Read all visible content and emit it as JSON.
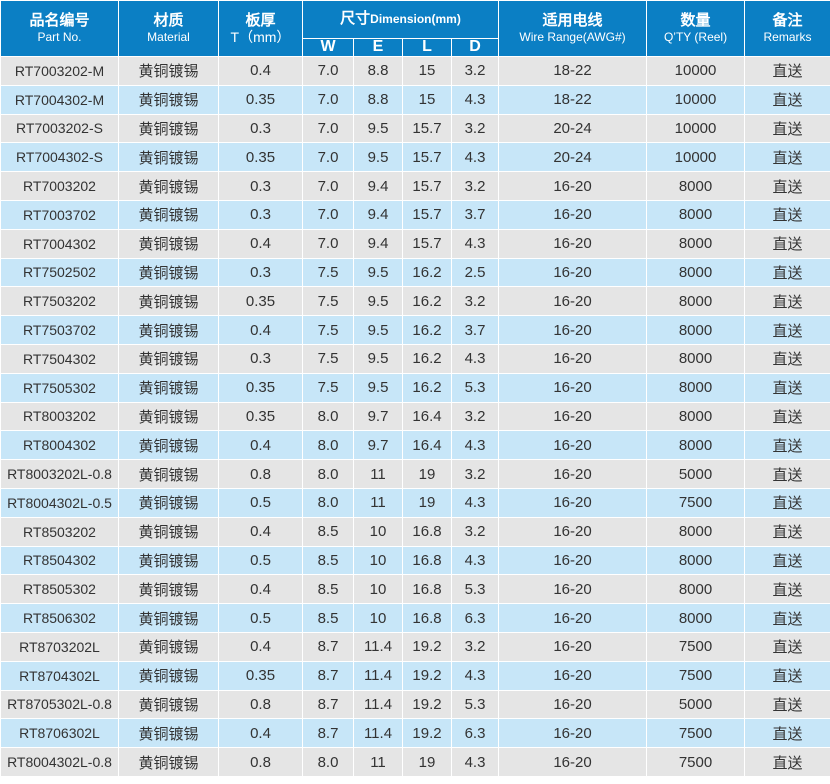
{
  "header": {
    "part_zh": "品名编号",
    "part_en": "Part No.",
    "material_zh": "材质",
    "material_en": "Material",
    "thickness_zh": "板厚",
    "thickness_en": "T（mm）",
    "dimension_zh": "尺寸",
    "dimension_en": "Dimension(mm)",
    "sub_w": "W",
    "sub_e": "E",
    "sub_l": "L",
    "sub_d": "D",
    "wire_zh": "适用电线",
    "wire_en": "Wire Range(AWG#)",
    "qty_zh": "数量",
    "qty_en": "Q’TY (Reel)",
    "remarks_zh": "备注",
    "remarks_en": "Remarks"
  },
  "rows": [
    [
      "RT7003202-M",
      "黄铜镀锡",
      "0.4",
      "7.0",
      "8.8",
      "15",
      "3.2",
      "18-22",
      "10000",
      "直送"
    ],
    [
      "RT7004302-M",
      "黄铜镀锡",
      "0.35",
      "7.0",
      "8.8",
      "15",
      "4.3",
      "18-22",
      "10000",
      "直送"
    ],
    [
      "RT7003202-S",
      "黄铜镀锡",
      "0.3",
      "7.0",
      "9.5",
      "15.7",
      "3.2",
      "20-24",
      "10000",
      "直送"
    ],
    [
      "RT7004302-S",
      "黄铜镀锡",
      "0.35",
      "7.0",
      "9.5",
      "15.7",
      "4.3",
      "20-24",
      "10000",
      "直送"
    ],
    [
      "RT7003202",
      "黄铜镀锡",
      "0.3",
      "7.0",
      "9.4",
      "15.7",
      "3.2",
      "16-20",
      "8000",
      "直送"
    ],
    [
      "RT7003702",
      "黄铜镀锡",
      "0.3",
      "7.0",
      "9.4",
      "15.7",
      "3.7",
      "16-20",
      "8000",
      "直送"
    ],
    [
      "RT7004302",
      "黄铜镀锡",
      "0.4",
      "7.0",
      "9.4",
      "15.7",
      "4.3",
      "16-20",
      "8000",
      "直送"
    ],
    [
      "RT7502502",
      "黄铜镀锡",
      "0.3",
      "7.5",
      "9.5",
      "16.2",
      "2.5",
      "16-20",
      "8000",
      "直送"
    ],
    [
      "RT7503202",
      "黄铜镀锡",
      "0.35",
      "7.5",
      "9.5",
      "16.2",
      "3.2",
      "16-20",
      "8000",
      "直送"
    ],
    [
      "RT7503702",
      "黄铜镀锡",
      "0.4",
      "7.5",
      "9.5",
      "16.2",
      "3.7",
      "16-20",
      "8000",
      "直送"
    ],
    [
      "RT7504302",
      "黄铜镀锡",
      "0.3",
      "7.5",
      "9.5",
      "16.2",
      "4.3",
      "16-20",
      "8000",
      "直送"
    ],
    [
      "RT7505302",
      "黄铜镀锡",
      "0.35",
      "7.5",
      "9.5",
      "16.2",
      "5.3",
      "16-20",
      "8000",
      "直送"
    ],
    [
      "RT8003202",
      "黄铜镀锡",
      "0.35",
      "8.0",
      "9.7",
      "16.4",
      "3.2",
      "16-20",
      "8000",
      "直送"
    ],
    [
      "RT8004302",
      "黄铜镀锡",
      "0.4",
      "8.0",
      "9.7",
      "16.4",
      "4.3",
      "16-20",
      "8000",
      "直送"
    ],
    [
      "RT8003202L-0.8",
      "黄铜镀锡",
      "0.8",
      "8.0",
      "11",
      "19",
      "3.2",
      "16-20",
      "5000",
      "直送"
    ],
    [
      "RT8004302L-0.5",
      "黄铜镀锡",
      "0.5",
      "8.0",
      "11",
      "19",
      "4.3",
      "16-20",
      "7500",
      "直送"
    ],
    [
      "RT8503202",
      "黄铜镀锡",
      "0.4",
      "8.5",
      "10",
      "16.8",
      "3.2",
      "16-20",
      "8000",
      "直送"
    ],
    [
      "RT8504302",
      "黄铜镀锡",
      "0.5",
      "8.5",
      "10",
      "16.8",
      "4.3",
      "16-20",
      "8000",
      "直送"
    ],
    [
      "RT8505302",
      "黄铜镀锡",
      "0.4",
      "8.5",
      "10",
      "16.8",
      "5.3",
      "16-20",
      "8000",
      "直送"
    ],
    [
      "RT8506302",
      "黄铜镀锡",
      "0.5",
      "8.5",
      "10",
      "16.8",
      "6.3",
      "16-20",
      "8000",
      "直送"
    ],
    [
      "RT8703202L",
      "黄铜镀锡",
      "0.4",
      "8.7",
      "11.4",
      "19.2",
      "3.2",
      "16-20",
      "7500",
      "直送"
    ],
    [
      "RT8704302L",
      "黄铜镀锡",
      "0.35",
      "8.7",
      "11.4",
      "19.2",
      "4.3",
      "16-20",
      "7500",
      "直送"
    ],
    [
      "RT8705302L-0.8",
      "黄铜镀锡",
      "0.8",
      "8.7",
      "11.4",
      "19.2",
      "5.3",
      "16-20",
      "5000",
      "直送"
    ],
    [
      "RT8706302L",
      "黄铜镀锡",
      "0.4",
      "8.7",
      "11.4",
      "19.2",
      "6.3",
      "16-20",
      "7500",
      "直送"
    ],
    [
      "RT8004302L-0.8",
      "黄铜镀锡",
      "0.8",
      "8.0",
      "11",
      "19",
      "4.3",
      "16-20",
      "7500",
      "直送"
    ]
  ],
  "colors": {
    "header_bg": "#0b7fc4",
    "row_gray": "#e5e5e5",
    "row_blue": "#c7e6f8"
  }
}
